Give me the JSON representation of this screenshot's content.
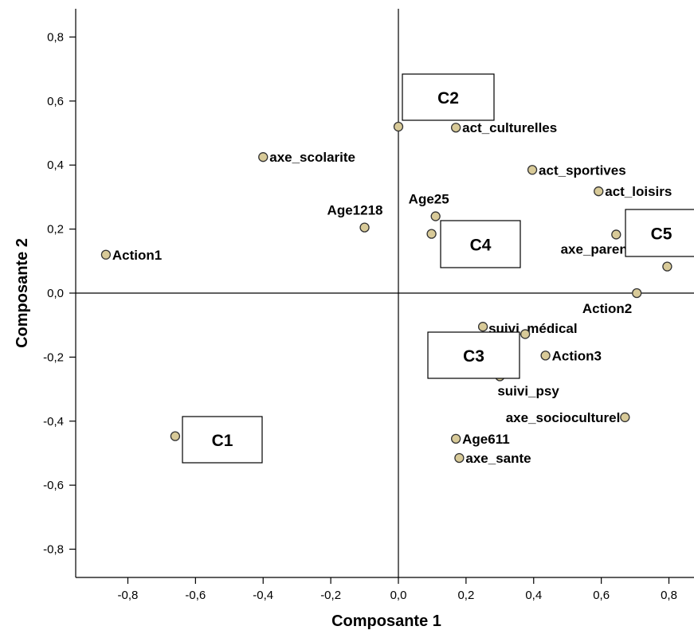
{
  "chart_data": {
    "type": "scatter",
    "xlabel": "Composante 1",
    "ylabel": "Composante 2",
    "xlim": [
      -0.95,
      0.87
    ],
    "ylim": [
      -0.89,
      0.89
    ],
    "x_ticks": [
      -0.8,
      -0.6,
      -0.4,
      -0.2,
      0.0,
      0.2,
      0.4,
      0.6,
      0.8
    ],
    "x_tick_labels": [
      "-0,8",
      "-0,6",
      "-0,4",
      "-0,2",
      "0,0",
      "0,2",
      "0,4",
      "0,6",
      "0,8"
    ],
    "y_ticks": [
      0.8,
      0.6,
      0.4,
      0.2,
      0.0,
      -0.2,
      -0.4,
      -0.6,
      -0.8
    ],
    "y_tick_labels": [
      "0,8",
      "0,6",
      "0,4",
      "0,2",
      "0,0",
      "-0,2",
      "-0,4",
      "-0,6",
      "-0,8"
    ],
    "grid": false,
    "reference_lines": {
      "x": 0,
      "y": 0
    },
    "marker_color": "#d8ca98",
    "points": [
      {
        "label": "",
        "x": 0.0,
        "y": 0.52
      },
      {
        "label": "act_culturelles",
        "x": 0.17,
        "y": 0.517
      },
      {
        "label": "axe_scolarite",
        "x": -0.4,
        "y": 0.425
      },
      {
        "label": "act_sportives",
        "x": 0.396,
        "y": 0.385
      },
      {
        "label": "act_loisirs",
        "x": 0.592,
        "y": 0.318
      },
      {
        "label": "Age25",
        "x": 0.11,
        "y": 0.24
      },
      {
        "label": "Age1218",
        "x": -0.1,
        "y": 0.205
      },
      {
        "label": "",
        "x": 0.098,
        "y": 0.185
      },
      {
        "label": "",
        "x": 0.644,
        "y": 0.183
      },
      {
        "label": "Action1",
        "x": -0.865,
        "y": 0.12
      },
      {
        "label": "axe_parentalite",
        "x": 0.795,
        "y": 0.083
      },
      {
        "label": "Action2",
        "x": 0.705,
        "y": 0.0
      },
      {
        "label": "suivi_médical",
        "x": 0.25,
        "y": -0.105
      },
      {
        "label": "",
        "x": 0.375,
        "y": -0.128
      },
      {
        "label": "Action3",
        "x": 0.435,
        "y": -0.195
      },
      {
        "label": "suivi_psy",
        "x": 0.3,
        "y": -0.26
      },
      {
        "label": "axe_socioculturel",
        "x": 0.67,
        "y": -0.388
      },
      {
        "label": "",
        "x": -0.66,
        "y": -0.447
      },
      {
        "label": "Age611",
        "x": 0.17,
        "y": -0.455
      },
      {
        "label": "axe_sante",
        "x": 0.18,
        "y": -0.515
      }
    ],
    "annotations": [
      "C1",
      "C2",
      "C3",
      "C4",
      "C5"
    ]
  }
}
